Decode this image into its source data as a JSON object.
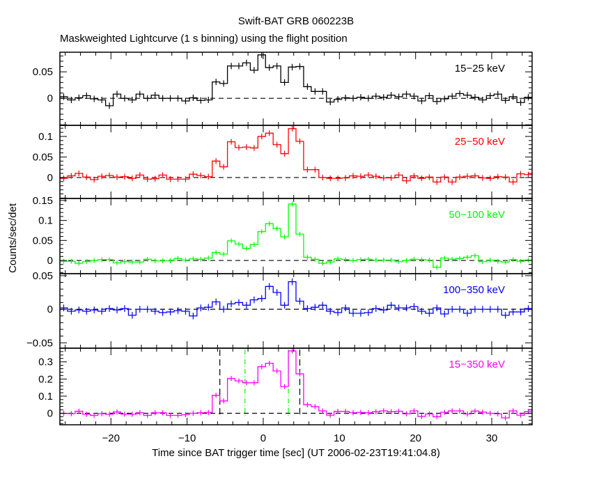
{
  "chart_data": {
    "type": "line",
    "title": "Swift-BAT GRB 060223B",
    "subtitle": "Maskweighted Lightcurve (1 s binning) using the flight position",
    "xlabel": "Time since BAT trigger time [sec] (UT 2006-02-23T19:41:04.8)",
    "ylabel": "Counts/sec/det",
    "xlim": [
      -26.7,
      35.3
    ],
    "x_ticks": [
      -20,
      -10,
      0,
      10,
      20,
      30
    ],
    "x_tick_labels": [
      "−20",
      "−10",
      "0",
      "10",
      "20",
      "30"
    ],
    "bin_start": -26.2,
    "bin_width": 1,
    "vertical_lines": [
      {
        "t": -5.7,
        "color": "#000000",
        "style": "dashed"
      },
      {
        "t": 4.8,
        "color": "#000000",
        "style": "dashed"
      },
      {
        "t": -2.4,
        "color": "#00ff00",
        "style": "dashdot"
      },
      {
        "t": 3.3,
        "color": "#00ff00",
        "style": "dashdot"
      }
    ],
    "series": [
      {
        "name": "15−25 keV",
        "color": "#000000",
        "ylim": [
          -0.051,
          0.087
        ],
        "err": 0.006,
        "y_ticks": [
          0,
          0.05
        ],
        "y_tick_labels": [
          "0",
          "0.05"
        ],
        "values": [
          0.003,
          -0.003,
          0.001,
          0.005,
          -0.001,
          -0.003,
          -0.014,
          0.008,
          0,
          -0.003,
          0.008,
          0,
          0.006,
          0,
          0,
          0,
          -0.005,
          0.001,
          -0.004,
          -0.003,
          0.031,
          0.028,
          0.061,
          0.061,
          0.067,
          0.053,
          0.082,
          0.058,
          0.061,
          0.03,
          0.059,
          0.06,
          0.022,
          0.013,
          0.013,
          -0.007,
          -0.002,
          0.001,
          0,
          0.002,
          0,
          0.004,
          0.002,
          0.006,
          0.003,
          0.008,
          0.004,
          -0.005,
          0.005,
          -0.006,
          -0.001,
          0.004,
          0.009,
          0.006,
          0.002,
          -0.003,
          0.005,
          0.008,
          -0.004,
          0.003,
          -0.008,
          0.002
        ]
      },
      {
        "name": "25−50 keV",
        "color": "#ff0000",
        "ylim": [
          -0.051,
          0.127
        ],
        "err": 0.007,
        "y_ticks": [
          0,
          0.05,
          0.1
        ],
        "y_tick_labels": [
          "0",
          "0.05",
          "0.1"
        ],
        "values": [
          -0.002,
          0.004,
          0.01,
          0.001,
          -0.005,
          0.003,
          0.005,
          0.001,
          0.002,
          -0.002,
          0.006,
          -0.004,
          -0.003,
          0.006,
          -0.004,
          -0.004,
          -0.004,
          0.008,
          0.005,
          0.002,
          0.04,
          0.026,
          0.087,
          0.073,
          0.074,
          0.072,
          0.1,
          0.108,
          0.08,
          0.058,
          0.119,
          0.088,
          0.019,
          0.019,
          0,
          -0.002,
          -0.002,
          -0.001,
          0.004,
          0.003,
          0.006,
          0.003,
          -0.001,
          -0.001,
          0.006,
          -0.008,
          0.004,
          -0.002,
          0.001,
          -0.011,
          0.001,
          -0.011,
          0.001,
          0.003,
          0.004,
          -0.001,
          -0.002,
          0.002,
          0.001,
          -0.011,
          0.009,
          0.007
        ]
      },
      {
        "name": "50−100 keV",
        "color": "#00ff00",
        "ylim": [
          -0.033,
          0.155
        ],
        "err": 0.006,
        "y_ticks": [
          0,
          0.05,
          0.1,
          0.15
        ],
        "y_tick_labels": [
          "0",
          "0.05",
          "0.1",
          "0.15"
        ],
        "values": [
          -0.002,
          -0.002,
          -0.007,
          -0.003,
          0,
          0.002,
          0.002,
          -0.006,
          -0.003,
          -0.004,
          -0.004,
          0.003,
          -0.001,
          -0.001,
          -0.001,
          0.005,
          0.001,
          0.004,
          0.003,
          0.006,
          0.02,
          0.016,
          0.049,
          0.041,
          0.03,
          0.04,
          0.072,
          0.092,
          0.08,
          0.059,
          0.141,
          0.066,
          0.008,
          0.003,
          -0.007,
          -0.004,
          0.004,
          0.002,
          0,
          0.002,
          0.003,
          0.001,
          0.001,
          0.001,
          -0.003,
          0,
          0.003,
          0.002,
          0.001,
          -0.017,
          0.006,
          0.003,
          0.005,
          0.008,
          0.012,
          -0.003,
          0.001,
          -0.002,
          -0.004,
          0.002,
          -0.002,
          0.001
        ]
      },
      {
        "name": "100−350 keV",
        "color": "#0000ff",
        "ylim": [
          -0.058,
          0.053
        ],
        "err": 0.005,
        "y_ticks": [
          -0.05,
          0,
          0.05
        ],
        "y_tick_labels": [
          "−0.05",
          "0",
          "0.05"
        ],
        "values": [
          0.002,
          -0.003,
          -0.001,
          -0.003,
          -0.001,
          -0.003,
          0.001,
          -0.001,
          0.001,
          -0.009,
          0,
          0,
          -0.003,
          -0.005,
          -0.004,
          -0.002,
          -0.003,
          -0.01,
          0.002,
          0.003,
          0.011,
          0,
          0.008,
          0.01,
          0.006,
          0.014,
          0.016,
          0.034,
          0.025,
          0.006,
          0.041,
          0.012,
          0.001,
          0.003,
          0.006,
          -0.003,
          -0.005,
          0.002,
          -0.006,
          -0.006,
          -0.005,
          0.001,
          -0.001,
          0.006,
          0.002,
          0.002,
          0.004,
          -0.003,
          -0.006,
          0.002,
          -0.007,
          0,
          0,
          -0.006,
          0,
          0,
          0,
          0,
          -0.009,
          -0.004,
          -0.004,
          0.001
        ]
      },
      {
        "name": "15−350 keV",
        "color": "#ff00ff",
        "ylim": [
          -0.067,
          0.38
        ],
        "err": 0.015,
        "y_ticks": [
          0,
          0.1,
          0.2,
          0.3
        ],
        "y_tick_labels": [
          "0",
          "0.1",
          "0.2",
          "0.3"
        ],
        "values": [
          0,
          -0.002,
          0.012,
          -0.006,
          -0.012,
          -0.002,
          -0.006,
          0.008,
          -0.005,
          -0.006,
          0.003,
          -0.012,
          0.003,
          0.003,
          -0.012,
          -0.012,
          -0.008,
          0,
          0.003,
          0.005,
          0.105,
          0.072,
          0.203,
          0.189,
          0.178,
          0.178,
          0.272,
          0.292,
          0.247,
          0.156,
          0.364,
          0.23,
          0.05,
          0.039,
          0.014,
          -0.011,
          0.011,
          0.011,
          0.003,
          0.005,
          0.003,
          0.009,
          0.014,
          0.009,
          0.012,
          -0.003,
          0.014,
          -0.018,
          -0.004,
          -0.02,
          0.006,
          0.014,
          0.014,
          -0.004,
          0.013,
          0.007,
          0,
          -0.003,
          -0.027,
          0.014,
          -0.011,
          0.01
        ]
      }
    ]
  }
}
